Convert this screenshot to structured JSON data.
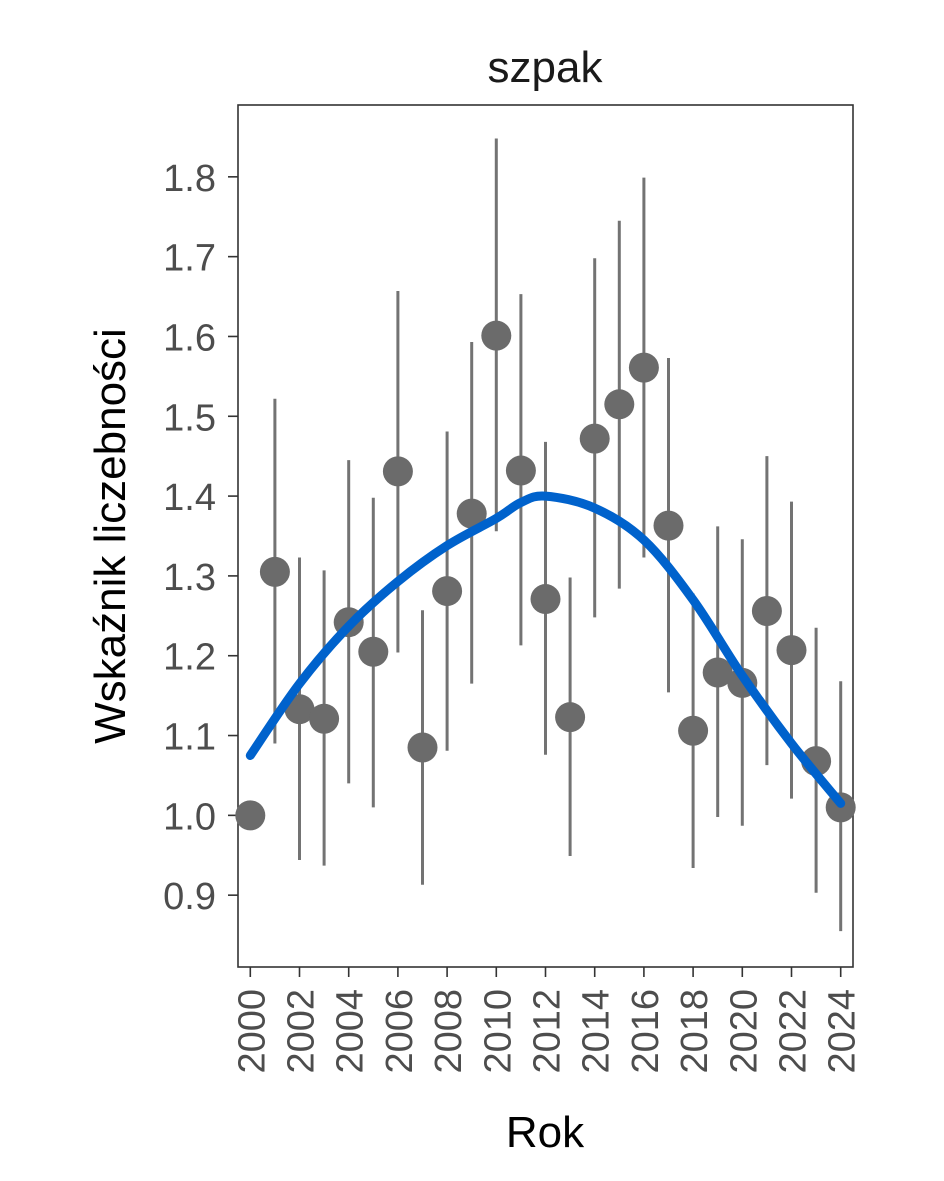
{
  "chart_data": {
    "type": "scatter",
    "title": "szpak",
    "xlabel": "Rok",
    "ylabel": "Wskaźnik liczebności",
    "xlim": [
      1999.5,
      2024.5
    ],
    "ylim": [
      0.81,
      1.89
    ],
    "x_ticks": [
      2000,
      2002,
      2004,
      2006,
      2008,
      2010,
      2012,
      2014,
      2016,
      2018,
      2020,
      2022,
      2024
    ],
    "x_tick_labels": [
      "2000",
      "2002",
      "2004",
      "2006",
      "2008",
      "2010",
      "2012",
      "2014",
      "2016",
      "2018",
      "2020",
      "2022",
      "2024"
    ],
    "y_ticks": [
      0.9,
      1.0,
      1.1,
      1.2,
      1.3,
      1.4,
      1.5,
      1.6,
      1.7,
      1.8
    ],
    "y_tick_labels": [
      "0.9",
      "1.0",
      "1.1",
      "1.2",
      "1.3",
      "1.4",
      "1.5",
      "1.6",
      "1.7",
      "1.8"
    ],
    "grid": false,
    "colors": {
      "points": "#6b6b6b",
      "errorbars": "#737373",
      "trend": "#0062cc",
      "frame": "#333333"
    },
    "series": [
      {
        "name": "index",
        "x": [
          2000,
          2001,
          2002,
          2003,
          2004,
          2005,
          2006,
          2007,
          2008,
          2009,
          2010,
          2011,
          2012,
          2013,
          2014,
          2015,
          2016,
          2017,
          2018,
          2019,
          2020,
          2021,
          2022,
          2023,
          2024
        ],
        "y": [
          1.0,
          1.305,
          1.133,
          1.121,
          1.242,
          1.205,
          1.431,
          1.085,
          1.281,
          1.378,
          1.601,
          1.432,
          1.271,
          1.123,
          1.472,
          1.515,
          1.561,
          1.363,
          1.106,
          1.179,
          1.166,
          1.256,
          1.207,
          1.068,
          1.01
        ],
        "lower": [
          null,
          1.09,
          0.944,
          0.937,
          1.04,
          1.01,
          1.204,
          0.913,
          1.081,
          1.165,
          1.356,
          1.213,
          1.076,
          0.949,
          1.248,
          1.284,
          1.323,
          1.154,
          0.934,
          0.998,
          0.987,
          1.063,
          1.021,
          0.903,
          0.855
        ],
        "upper": [
          null,
          1.522,
          1.323,
          1.307,
          1.445,
          1.398,
          1.657,
          1.257,
          1.481,
          1.593,
          1.848,
          1.653,
          1.468,
          1.298,
          1.698,
          1.745,
          1.799,
          1.573,
          1.278,
          1.362,
          1.346,
          1.45,
          1.393,
          1.235,
          1.168
        ]
      },
      {
        "name": "trend",
        "x": [
          2000,
          2002,
          2004,
          2006,
          2008,
          2010,
          2011,
          2012,
          2014,
          2016,
          2018,
          2020,
          2022,
          2024
        ],
        "y": [
          1.075,
          1.165,
          1.237,
          1.293,
          1.338,
          1.372,
          1.392,
          1.4,
          1.385,
          1.345,
          1.27,
          1.175,
          1.09,
          1.015
        ]
      }
    ]
  }
}
